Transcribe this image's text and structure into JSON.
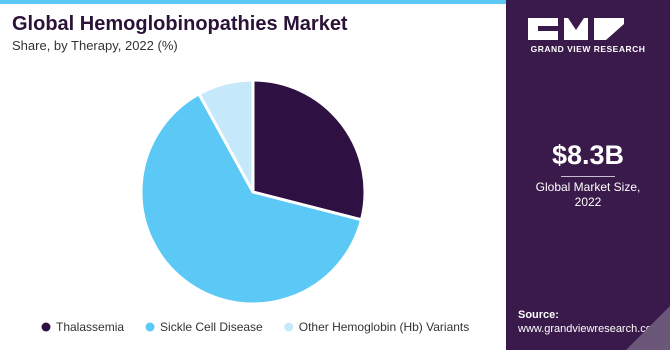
{
  "chart_data": {
    "type": "pie",
    "title": "Global Hemoglobinopathies Market",
    "subtitle": "Share, by Therapy, 2022 (%)",
    "categories": [
      "Thalassemia",
      "Sickle Cell Disease",
      "Other Hemoglobin (Hb) Variants"
    ],
    "values": [
      29,
      63,
      8
    ],
    "colors": [
      "#2e1142",
      "#5bc8f5",
      "#c5e8fa"
    ],
    "legend": "bottom"
  },
  "sidebar": {
    "brand": "GRAND VIEW RESEARCH",
    "market_size": "$8.3B",
    "market_size_label": "Global Market Size, 2022",
    "source_label": "Source:",
    "source_url": "www.grandviewresearch.com"
  }
}
